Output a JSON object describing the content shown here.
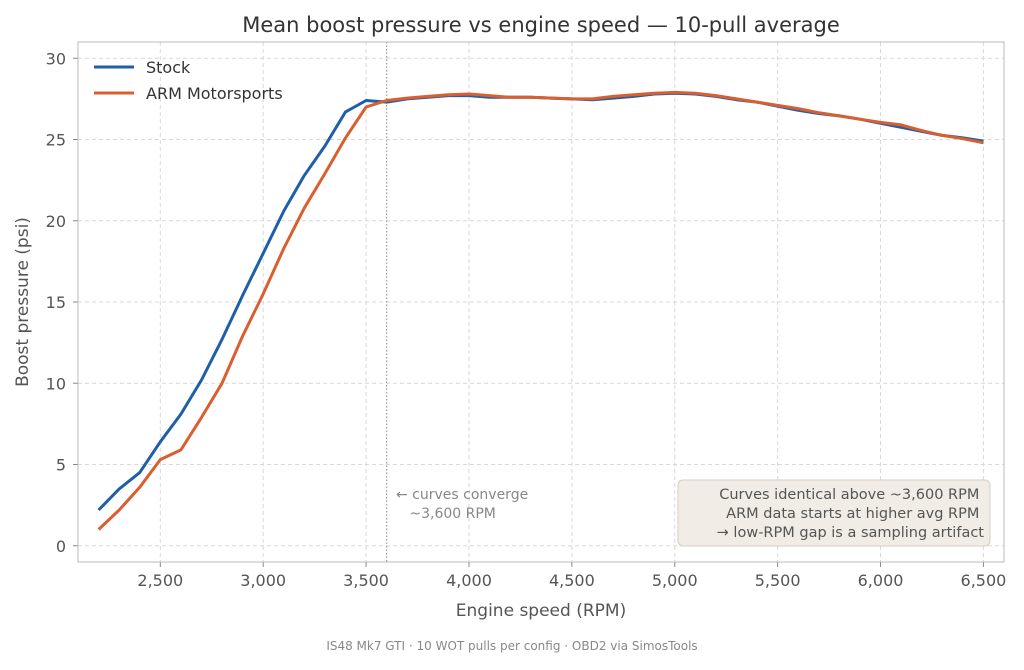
{
  "chart_data": {
    "type": "line",
    "title": "Mean boost pressure vs engine speed — 10-pull average",
    "xlabel": "Engine speed (RPM)",
    "ylabel": "Boost pressure (psi)",
    "caption": "IS48 Mk7 GTI · 10 WOT pulls per config · OBD2 via SimosTools",
    "xlim": [
      2100,
      6600
    ],
    "ylim": [
      -1,
      31
    ],
    "xticks": [
      2500,
      3000,
      3500,
      4000,
      4500,
      5000,
      5500,
      6000,
      6500
    ],
    "xtick_labels": [
      "2,500",
      "3,000",
      "3,500",
      "4,000",
      "4,500",
      "5,000",
      "5,500",
      "6,000",
      "6,500"
    ],
    "yticks": [
      0,
      5,
      10,
      15,
      20,
      25,
      30
    ],
    "ytick_labels": [
      "0",
      "5",
      "10",
      "15",
      "20",
      "25",
      "30"
    ],
    "grid": true,
    "legend_position": "top-left",
    "x": [
      2200,
      2300,
      2400,
      2500,
      2600,
      2700,
      2800,
      2900,
      3000,
      3100,
      3200,
      3300,
      3400,
      3500,
      3600,
      3700,
      3800,
      3900,
      4000,
      4100,
      4200,
      4300,
      4400,
      4500,
      4600,
      4700,
      4800,
      4900,
      5000,
      5100,
      5200,
      5300,
      5400,
      5500,
      5600,
      5700,
      5800,
      5900,
      6000,
      6100,
      6200,
      6300,
      6400,
      6500
    ],
    "series": [
      {
        "name": "Stock",
        "color": "#1f5fa8",
        "values": [
          2.2,
          3.5,
          4.5,
          6.4,
          8.1,
          10.2,
          12.7,
          15.4,
          18.0,
          20.6,
          22.8,
          24.6,
          26.7,
          27.4,
          27.3,
          27.5,
          27.6,
          27.7,
          27.7,
          27.6,
          27.6,
          27.6,
          27.55,
          27.5,
          27.45,
          27.55,
          27.65,
          27.8,
          27.85,
          27.8,
          27.65,
          27.45,
          27.3,
          27.05,
          26.8,
          26.6,
          26.45,
          26.25,
          26.0,
          25.75,
          25.5,
          25.25,
          25.1,
          24.9
        ]
      },
      {
        "name": "ARM Motorsports",
        "color": "#d95f30",
        "values": [
          1.0,
          2.2,
          3.6,
          5.3,
          5.9,
          7.9,
          10.0,
          12.9,
          15.5,
          18.3,
          20.8,
          22.9,
          25.1,
          27.0,
          27.4,
          27.55,
          27.65,
          27.75,
          27.8,
          27.7,
          27.6,
          27.6,
          27.55,
          27.5,
          27.5,
          27.65,
          27.75,
          27.85,
          27.9,
          27.85,
          27.7,
          27.5,
          27.3,
          27.1,
          26.9,
          26.65,
          26.45,
          26.25,
          26.05,
          25.9,
          25.55,
          25.25,
          25.05,
          24.8
        ]
      }
    ],
    "vline": {
      "x": 3600
    },
    "annotation": {
      "lines": [
        "← curves converge",
        "   ~3,600 RPM"
      ]
    },
    "note_box": {
      "lines": [
        "Curves identical above ~3,600 RPM",
        "ARM data starts at higher avg RPM",
        "→ low-RPM gap is a sampling artifact"
      ]
    }
  }
}
